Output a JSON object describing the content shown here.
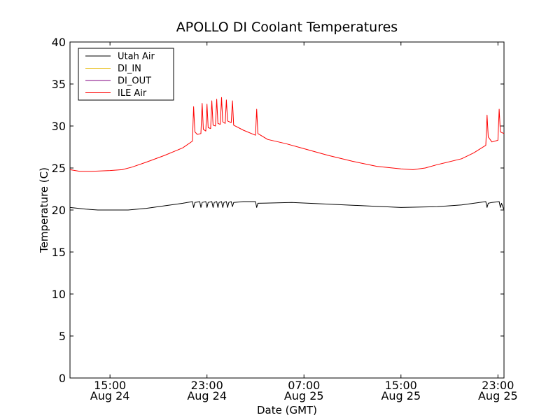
{
  "chart_data": {
    "type": "line",
    "title": "APOLLO DI Coolant Temperatures",
    "xlabel": "Date (GMT)",
    "ylabel": "Temperature (C)",
    "xlim_hours": [
      11.7,
      47.5
    ],
    "ylim": [
      0,
      40
    ],
    "yticks": [
      0,
      5,
      10,
      15,
      20,
      25,
      30,
      35,
      40
    ],
    "xticks": [
      {
        "hours": 15,
        "time": "15:00",
        "date": "Aug 24"
      },
      {
        "hours": 23,
        "time": "23:00",
        "date": "Aug 24"
      },
      {
        "hours": 31,
        "time": "07:00",
        "date": "Aug 25"
      },
      {
        "hours": 39,
        "time": "15:00",
        "date": "Aug 25"
      },
      {
        "hours": 47,
        "time": "23:00",
        "date": "Aug 25"
      }
    ],
    "grid": false,
    "legend_location": "top-left",
    "series": [
      {
        "name": "Utah Air",
        "color": "#000000",
        "points": [
          [
            11.7,
            20.3
          ],
          [
            13,
            20.1
          ],
          [
            14,
            20.0
          ],
          [
            15.5,
            20.0
          ],
          [
            16.5,
            20.0
          ],
          [
            18,
            20.2
          ],
          [
            19.5,
            20.5
          ],
          [
            21,
            20.8
          ],
          [
            21.8,
            21.0
          ],
          [
            21.9,
            20.3
          ],
          [
            22.0,
            20.9
          ],
          [
            22.4,
            21.0
          ],
          [
            22.5,
            20.3
          ],
          [
            22.6,
            20.9
          ],
          [
            22.9,
            21.0
          ],
          [
            23.0,
            20.3
          ],
          [
            23.1,
            20.9
          ],
          [
            23.4,
            21.0
          ],
          [
            23.5,
            20.3
          ],
          [
            23.6,
            20.9
          ],
          [
            23.8,
            21.0
          ],
          [
            23.9,
            20.3
          ],
          [
            24.0,
            20.9
          ],
          [
            24.2,
            21.0
          ],
          [
            24.3,
            20.3
          ],
          [
            24.4,
            20.9
          ],
          [
            24.6,
            21.0
          ],
          [
            24.7,
            20.3
          ],
          [
            24.8,
            20.9
          ],
          [
            25.0,
            21.0
          ],
          [
            25.1,
            20.4
          ],
          [
            25.2,
            20.9
          ],
          [
            26,
            21.0
          ],
          [
            27.0,
            21.0
          ],
          [
            27.1,
            20.3
          ],
          [
            27.2,
            20.8
          ],
          [
            30,
            20.9
          ],
          [
            33,
            20.7
          ],
          [
            36,
            20.5
          ],
          [
            39,
            20.3
          ],
          [
            42,
            20.4
          ],
          [
            44,
            20.6
          ],
          [
            46,
            21.0
          ],
          [
            46.1,
            20.3
          ],
          [
            46.2,
            20.8
          ],
          [
            46.5,
            20.9
          ],
          [
            47.1,
            21.0
          ],
          [
            47.2,
            20.3
          ],
          [
            47.3,
            20.8
          ],
          [
            47.5,
            20.0
          ]
        ]
      },
      {
        "name": "DI_IN",
        "color": "#e6b800",
        "points": []
      },
      {
        "name": "DI_OUT",
        "color": "#800080",
        "points": []
      },
      {
        "name": "ILE Air",
        "color": "#ff0000",
        "points": [
          [
            11.7,
            24.8
          ],
          [
            12.5,
            24.6
          ],
          [
            13.5,
            24.6
          ],
          [
            15,
            24.7
          ],
          [
            16,
            24.8
          ],
          [
            16.8,
            25.1
          ],
          [
            18,
            25.7
          ],
          [
            19.5,
            26.5
          ],
          [
            21,
            27.4
          ],
          [
            21.8,
            28.2
          ],
          [
            21.9,
            32.3
          ],
          [
            22.0,
            29.3
          ],
          [
            22.2,
            29.0
          ],
          [
            22.5,
            29.1
          ],
          [
            22.6,
            32.7
          ],
          [
            22.7,
            29.6
          ],
          [
            22.9,
            29.4
          ],
          [
            23.0,
            32.6
          ],
          [
            23.1,
            29.8
          ],
          [
            23.3,
            29.7
          ],
          [
            23.4,
            33.0
          ],
          [
            23.5,
            30.1
          ],
          [
            23.7,
            30.0
          ],
          [
            23.8,
            33.2
          ],
          [
            23.9,
            30.3
          ],
          [
            24.1,
            30.2
          ],
          [
            24.2,
            33.4
          ],
          [
            24.3,
            30.5
          ],
          [
            24.5,
            30.3
          ],
          [
            24.6,
            33.1
          ],
          [
            24.7,
            30.6
          ],
          [
            25.0,
            30.4
          ],
          [
            25.1,
            33.0
          ],
          [
            25.2,
            30.1
          ],
          [
            26,
            29.5
          ],
          [
            27.0,
            28.9
          ],
          [
            27.1,
            32.0
          ],
          [
            27.2,
            29.1
          ],
          [
            28,
            28.4
          ],
          [
            29.5,
            27.9
          ],
          [
            31,
            27.3
          ],
          [
            33,
            26.5
          ],
          [
            35,
            25.8
          ],
          [
            37,
            25.2
          ],
          [
            39,
            24.9
          ],
          [
            40,
            24.8
          ],
          [
            41,
            25.0
          ],
          [
            42,
            25.4
          ],
          [
            44,
            26.1
          ],
          [
            45,
            26.8
          ],
          [
            46,
            27.7
          ],
          [
            46.1,
            31.3
          ],
          [
            46.2,
            28.7
          ],
          [
            46.5,
            28.1
          ],
          [
            47.0,
            28.3
          ],
          [
            47.1,
            32.0
          ],
          [
            47.2,
            29.3
          ],
          [
            47.5,
            29.1
          ]
        ]
      }
    ]
  }
}
